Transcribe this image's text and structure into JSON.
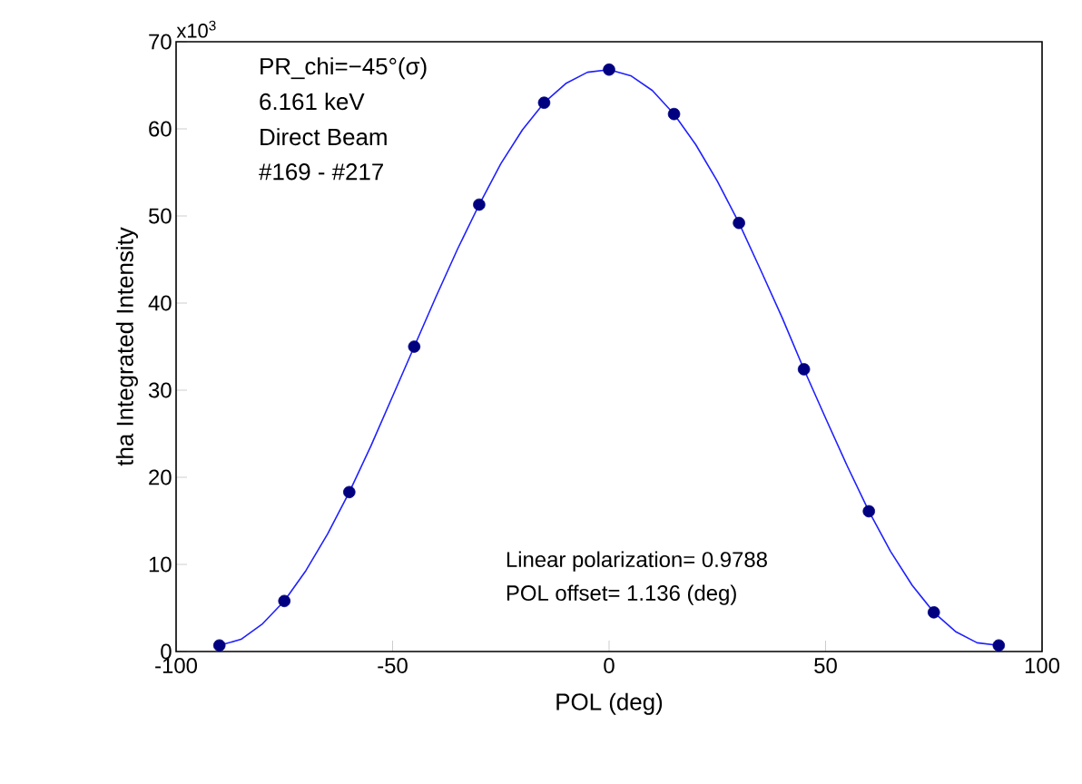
{
  "chart_data": {
    "type": "scatter",
    "xlabel": "POL  (deg)",
    "ylabel": "tha Integrated Intensity",
    "xlim": [
      -100,
      100
    ],
    "xticks": [
      -100,
      -50,
      0,
      50,
      100
    ],
    "ylim": [
      0,
      70
    ],
    "yticks": [
      0,
      10,
      20,
      30,
      40,
      50,
      60,
      70
    ],
    "grid": false,
    "series": [
      {
        "color": "#000080",
        "marker": "circle",
        "x": [
          -90,
          -75,
          -60,
          -45,
          -30,
          -15,
          0,
          15,
          30,
          45,
          60,
          75,
          90
        ],
        "values": [
          0.7,
          5.8,
          18.3,
          35.0,
          51.3,
          63.0,
          66.8,
          61.7,
          49.2,
          32.4,
          16.1,
          4.5,
          0.7
        ]
      },
      {
        "type": "line",
        "color": "#2020ff",
        "marker": "none",
        "line_style": "solid",
        "x": [
          -90,
          -85,
          -80,
          -75,
          -70,
          -65,
          -60,
          -55,
          -50,
          -45,
          -40,
          -35,
          -30,
          -25,
          -20,
          -15,
          -10,
          -5,
          0,
          5,
          10,
          15,
          20,
          25,
          30,
          35,
          40,
          45,
          50,
          55,
          60,
          65,
          70,
          75,
          80,
          85,
          90
        ],
        "values": [
          0.7,
          1.4,
          3.2,
          5.8,
          9.3,
          13.5,
          18.3,
          23.6,
          29.3,
          35.0,
          40.7,
          46.2,
          51.3,
          56.0,
          59.9,
          63.0,
          65.2,
          66.5,
          66.8,
          66.1,
          64.4,
          61.7,
          58.2,
          54.0,
          49.2,
          43.8,
          38.3,
          32.4,
          26.8,
          21.3,
          16.1,
          11.5,
          7.6,
          4.5,
          2.3,
          1.0,
          0.7
        ]
      }
    ],
    "annotations": [
      "PR_chi=−45°(σ)",
      "6.161 keV",
      "Direct Beam",
      "#169 - #217",
      "Linear polarization=  0.9788",
      "POL offset=  1.136  (deg)",
      "x10$^{3}$"
    ]
  }
}
